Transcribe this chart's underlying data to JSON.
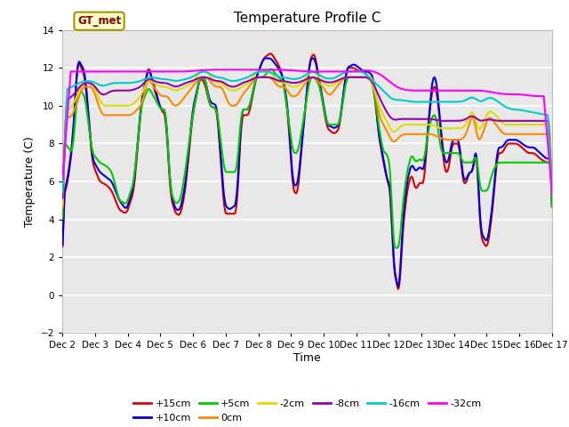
{
  "title": "Temperature Profile C",
  "xlabel": "Time",
  "ylabel": "Temperature (C)",
  "ylim": [
    -2,
    14
  ],
  "yticks": [
    -2,
    0,
    2,
    4,
    6,
    8,
    10,
    12,
    14
  ],
  "x_labels": [
    "Dec 2",
    "Dec 3",
    "Dec 4",
    "Dec 5",
    "Dec 6",
    "Dec 7",
    "Dec 8",
    "Dec 9",
    "Dec 10",
    "Dec 11",
    "Dec 12",
    "Dec 13",
    "Dec 14",
    "Dec 15",
    "Dec 16",
    "Dec 17"
  ],
  "series_labels": [
    "+15cm",
    "+10cm",
    "+5cm",
    "0cm",
    "-2cm",
    "-8cm",
    "-16cm",
    "-32cm"
  ],
  "series_colors": [
    "#dd0000",
    "#0000dd",
    "#00cc00",
    "#ff8800",
    "#dddd00",
    "#9900aa",
    "#00cccc",
    "#ff00ff"
  ],
  "legend_box_color": "#ffffcc",
  "legend_box_edge": "#999900",
  "legend_label": "GT_met",
  "bg_color": "#e8e8e8",
  "grid_color": "white",
  "n_points": 720
}
